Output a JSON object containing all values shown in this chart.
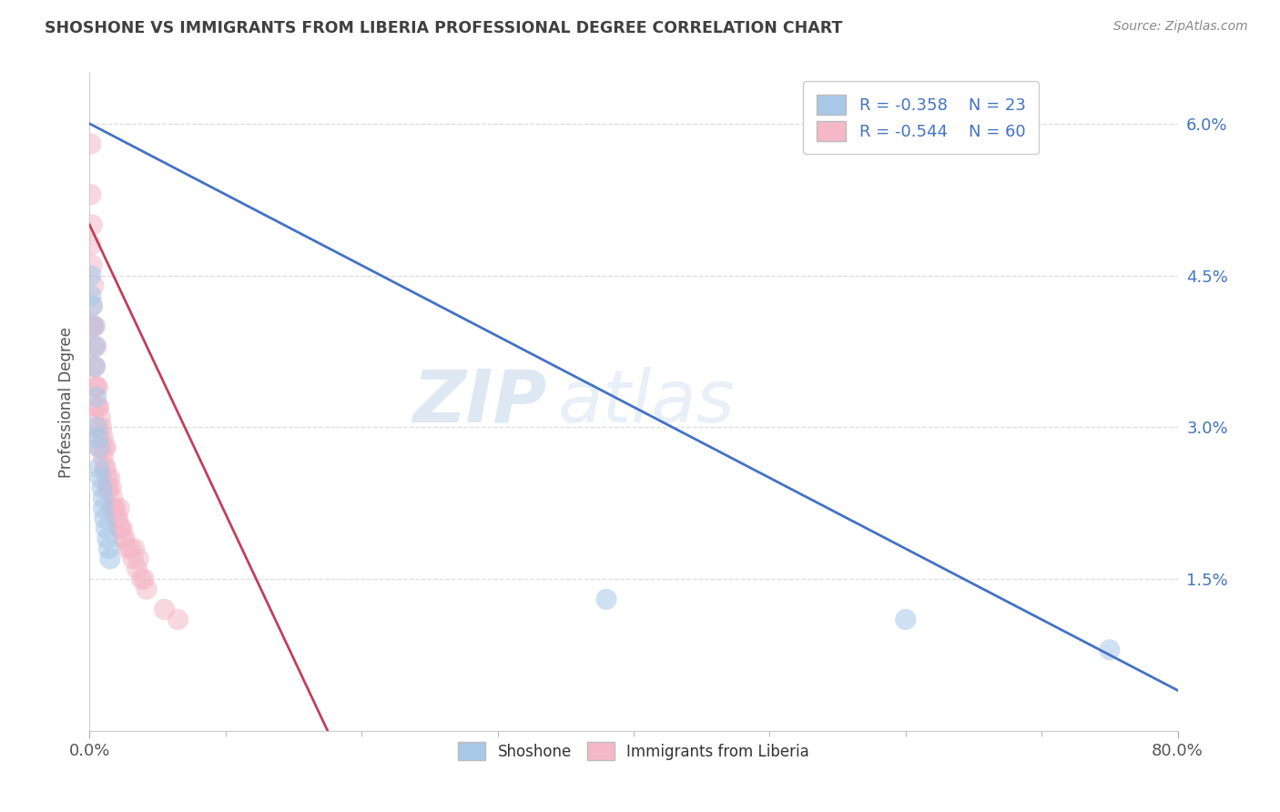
{
  "title": "SHOSHONE VS IMMIGRANTS FROM LIBERIA PROFESSIONAL DEGREE CORRELATION CHART",
  "source_text": "Source: ZipAtlas.com",
  "ylabel": "Professional Degree",
  "yticks": [
    0.0,
    0.015,
    0.03,
    0.045,
    0.06
  ],
  "ytick_labels": [
    "",
    "1.5%",
    "3.0%",
    "4.5%",
    "6.0%"
  ],
  "xlim": [
    0.0,
    0.8
  ],
  "ylim": [
    0.0,
    0.065
  ],
  "legend_r1": "R = -0.358",
  "legend_n1": "N = 23",
  "legend_r2": "R = -0.544",
  "legend_n2": "N = 60",
  "color_blue": "#a8c8e8",
  "color_pink": "#f4b8c8",
  "color_blue_line": "#4472c4",
  "color_pink_line": "#c0405a",
  "color_title": "#404040",
  "color_source": "#888888",
  "color_rn_text": "#4472c4",
  "color_ytick": "#4472c4",
  "watermark_zip": "ZIP",
  "watermark_atlas": "atlas",
  "shoshone_x": [
    0.001,
    0.001,
    0.002,
    0.003,
    0.004,
    0.004,
    0.005,
    0.005,
    0.006,
    0.007,
    0.007,
    0.008,
    0.009,
    0.01,
    0.01,
    0.011,
    0.012,
    0.013,
    0.014,
    0.015,
    0.38,
    0.6,
    0.75
  ],
  "shoshone_y": [
    0.045,
    0.043,
    0.042,
    0.04,
    0.038,
    0.036,
    0.033,
    0.03,
    0.029,
    0.028,
    0.026,
    0.025,
    0.024,
    0.023,
    0.022,
    0.021,
    0.02,
    0.019,
    0.018,
    0.017,
    0.013,
    0.011,
    0.008
  ],
  "liberia_x": [
    0.001,
    0.001,
    0.001,
    0.002,
    0.002,
    0.002,
    0.002,
    0.003,
    0.003,
    0.003,
    0.003,
    0.004,
    0.004,
    0.004,
    0.005,
    0.005,
    0.005,
    0.006,
    0.006,
    0.007,
    0.007,
    0.007,
    0.008,
    0.008,
    0.009,
    0.009,
    0.01,
    0.01,
    0.011,
    0.011,
    0.012,
    0.012,
    0.013,
    0.013,
    0.014,
    0.015,
    0.016,
    0.016,
    0.017,
    0.018,
    0.019,
    0.02,
    0.021,
    0.022,
    0.022,
    0.023,
    0.024,
    0.025,
    0.026,
    0.028,
    0.03,
    0.032,
    0.033,
    0.035,
    0.036,
    0.038,
    0.04,
    0.042,
    0.055,
    0.065
  ],
  "liberia_y": [
    0.058,
    0.053,
    0.048,
    0.05,
    0.046,
    0.042,
    0.04,
    0.044,
    0.04,
    0.038,
    0.036,
    0.04,
    0.036,
    0.034,
    0.038,
    0.034,
    0.032,
    0.034,
    0.032,
    0.032,
    0.03,
    0.028,
    0.031,
    0.029,
    0.03,
    0.028,
    0.029,
    0.027,
    0.028,
    0.026,
    0.028,
    0.026,
    0.025,
    0.024,
    0.024,
    0.025,
    0.024,
    0.022,
    0.023,
    0.022,
    0.022,
    0.021,
    0.021,
    0.02,
    0.022,
    0.02,
    0.02,
    0.019,
    0.019,
    0.018,
    0.018,
    0.017,
    0.018,
    0.016,
    0.017,
    0.015,
    0.015,
    0.014,
    0.012,
    0.011
  ],
  "blue_line_x": [
    0.0,
    0.8
  ],
  "blue_line_y": [
    0.06,
    0.004
  ],
  "pink_line_x": [
    0.0,
    0.175
  ],
  "pink_line_y": [
    0.05,
    0.0
  ],
  "legend_label1": "Shoshone",
  "legend_label2": "Immigrants from Liberia"
}
